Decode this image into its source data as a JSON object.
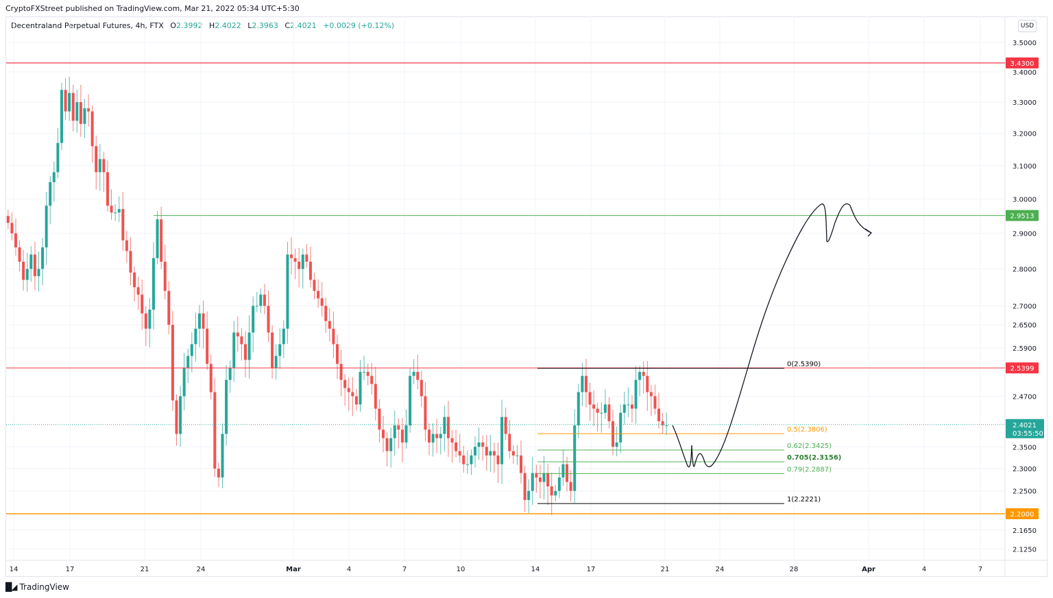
{
  "header": {
    "published_line": "CryptoFXStreet published on TradingView.com, Mar 21, 2022 05:34 UTC+5:30"
  },
  "legend": {
    "symbol": "Decentraland Perpetual Futures, 4h, FTX",
    "open_label": "O",
    "open": "2.3992",
    "high_label": "H",
    "high": "2.4022",
    "low_label": "L",
    "low": "2.3963",
    "close_label": "C",
    "close": "2.4021",
    "change": "+0.0029 (+0.12%)"
  },
  "price_axis": {
    "currency": "USD",
    "ticks": [
      "3.5000",
      "3.4000",
      "3.3000",
      "3.2000",
      "3.1000",
      "3.0000",
      "2.9000",
      "2.8000",
      "2.7000",
      "2.6500",
      "2.5900",
      "2.4700",
      "2.3500",
      "2.3000",
      "2.2500",
      "2.1650",
      "2.1250"
    ],
    "badges": [
      {
        "label": "3.4300",
        "color": "#f23645"
      },
      {
        "label": "2.9513",
        "color": "#4caf50"
      },
      {
        "label": "2.5399",
        "color": "#f23645"
      },
      {
        "label": "2.2000",
        "color": "#ff9800"
      }
    ],
    "last_price": {
      "label": "2.4021",
      "countdown": "03:55:50",
      "color": "#26a69a"
    }
  },
  "time_axis": {
    "ticks": [
      "14",
      "17",
      "21",
      "24",
      "Mar",
      "4",
      "7",
      "10",
      "14",
      "17",
      "21",
      "24",
      "28",
      "Apr",
      "4",
      "7"
    ]
  },
  "fib": {
    "levels": [
      {
        "label": "0(2.5390)",
        "color": "#000000"
      },
      {
        "label": "0.5(2.3806)",
        "color": "#ff9800"
      },
      {
        "label": "0.62(2.3425)",
        "color": "#4caf50"
      },
      {
        "label": "0.705(2.3156)",
        "color": "#2e7d32"
      },
      {
        "label": "0.79(2.2887)",
        "color": "#4caf50"
      },
      {
        "label": "1(2.2221)",
        "color": "#000000"
      }
    ]
  },
  "footer": {
    "brand": "TradingView"
  },
  "chart_data": {
    "type": "candlestick",
    "title": "Decentraland Perpetual Futures, 4h, FTX",
    "xlabel": "",
    "ylabel": "USD",
    "y_scale": "log",
    "ylim": [
      2.1,
      3.55
    ],
    "grid": true,
    "x_ticks": [
      "14",
      "17",
      "21",
      "24",
      "Mar",
      "4",
      "7",
      "10",
      "14",
      "17",
      "21",
      "24",
      "28",
      "Apr",
      "4",
      "7"
    ],
    "y_ticks": [
      3.5,
      3.4,
      3.3,
      3.2,
      3.1,
      3.0,
      2.9,
      2.8,
      2.7,
      2.65,
      2.59,
      2.47,
      2.35,
      2.3,
      2.25,
      2.165,
      2.125
    ],
    "last": {
      "open": 2.3992,
      "high": 2.4022,
      "low": 2.3963,
      "close": 2.4021,
      "change": 0.0029,
      "change_pct": 0.12
    },
    "horizontal_lines": [
      {
        "price": 3.43,
        "color": "#f23645",
        "label": "3.4300"
      },
      {
        "price": 2.9513,
        "color": "#4caf50",
        "label": "2.9513"
      },
      {
        "price": 2.5399,
        "color": "#f23645",
        "label": "2.5399"
      },
      {
        "price": 2.2,
        "color": "#ff9800",
        "label": "2.2000"
      },
      {
        "price": 2.4021,
        "color": "#26a69a",
        "label": "2.4021",
        "style": "dotted"
      }
    ],
    "fibonacci_retracement": [
      {
        "ratio": 0,
        "price": 2.539
      },
      {
        "ratio": 0.5,
        "price": 2.3806
      },
      {
        "ratio": 0.62,
        "price": 2.3425
      },
      {
        "ratio": 0.705,
        "price": 2.3156
      },
      {
        "ratio": 0.79,
        "price": 2.2887
      },
      {
        "ratio": 1,
        "price": 2.2221
      }
    ],
    "projection_path_prices": [
      2.4,
      2.31,
      2.35,
      2.31,
      2.3,
      2.54,
      2.99,
      2.89,
      2.99,
      2.91
    ],
    "candles_close": [
      2.93,
      2.9,
      2.86,
      2.82,
      2.77,
      2.8,
      2.84,
      2.78,
      2.8,
      2.86,
      2.98,
      3.05,
      3.08,
      3.17,
      3.34,
      3.27,
      3.33,
      3.24,
      3.3,
      3.23,
      3.28,
      3.27,
      3.16,
      3.08,
      3.12,
      3.08,
      2.98,
      2.96,
      2.96,
      2.97,
      2.88,
      2.85,
      2.79,
      2.75,
      2.73,
      2.68,
      2.64,
      2.69,
      2.83,
      2.94,
      2.82,
      2.74,
      2.65,
      2.46,
      2.38,
      2.47,
      2.54,
      2.57,
      2.6,
      2.64,
      2.68,
      2.64,
      2.55,
      2.48,
      2.3,
      2.28,
      2.38,
      2.51,
      2.54,
      2.63,
      2.62,
      2.6,
      2.56,
      2.63,
      2.7,
      2.7,
      2.73,
      2.7,
      2.63,
      2.54,
      2.57,
      2.6,
      2.64,
      2.84,
      2.83,
      2.82,
      2.8,
      2.84,
      2.82,
      2.77,
      2.74,
      2.72,
      2.7,
      2.66,
      2.64,
      2.6,
      2.55,
      2.51,
      2.49,
      2.48,
      2.47,
      2.45,
      2.53,
      2.53,
      2.52,
      2.5,
      2.44,
      2.39,
      2.37,
      2.34,
      2.37,
      2.4,
      2.39,
      2.36,
      2.4,
      2.52,
      2.53,
      2.51,
      2.47,
      2.39,
      2.36,
      2.38,
      2.37,
      2.38,
      2.42,
      2.37,
      2.36,
      2.34,
      2.33,
      2.31,
      2.31,
      2.33,
      2.35,
      2.36,
      2.35,
      2.33,
      2.34,
      2.33,
      2.31,
      2.42,
      2.38,
      2.34,
      2.33,
      2.33,
      2.29,
      2.23,
      2.25,
      2.29,
      2.28,
      2.27,
      2.29,
      2.26,
      2.24,
      2.25,
      2.28,
      2.31,
      2.27,
      2.25,
      2.4,
      2.48,
      2.52,
      2.48,
      2.45,
      2.44,
      2.43,
      2.43,
      2.45,
      2.41,
      2.35,
      2.36,
      2.43,
      2.45,
      2.45,
      2.44,
      2.51,
      2.53,
      2.52,
      2.48,
      2.47,
      2.44,
      2.41,
      2.4,
      2.4
    ]
  }
}
